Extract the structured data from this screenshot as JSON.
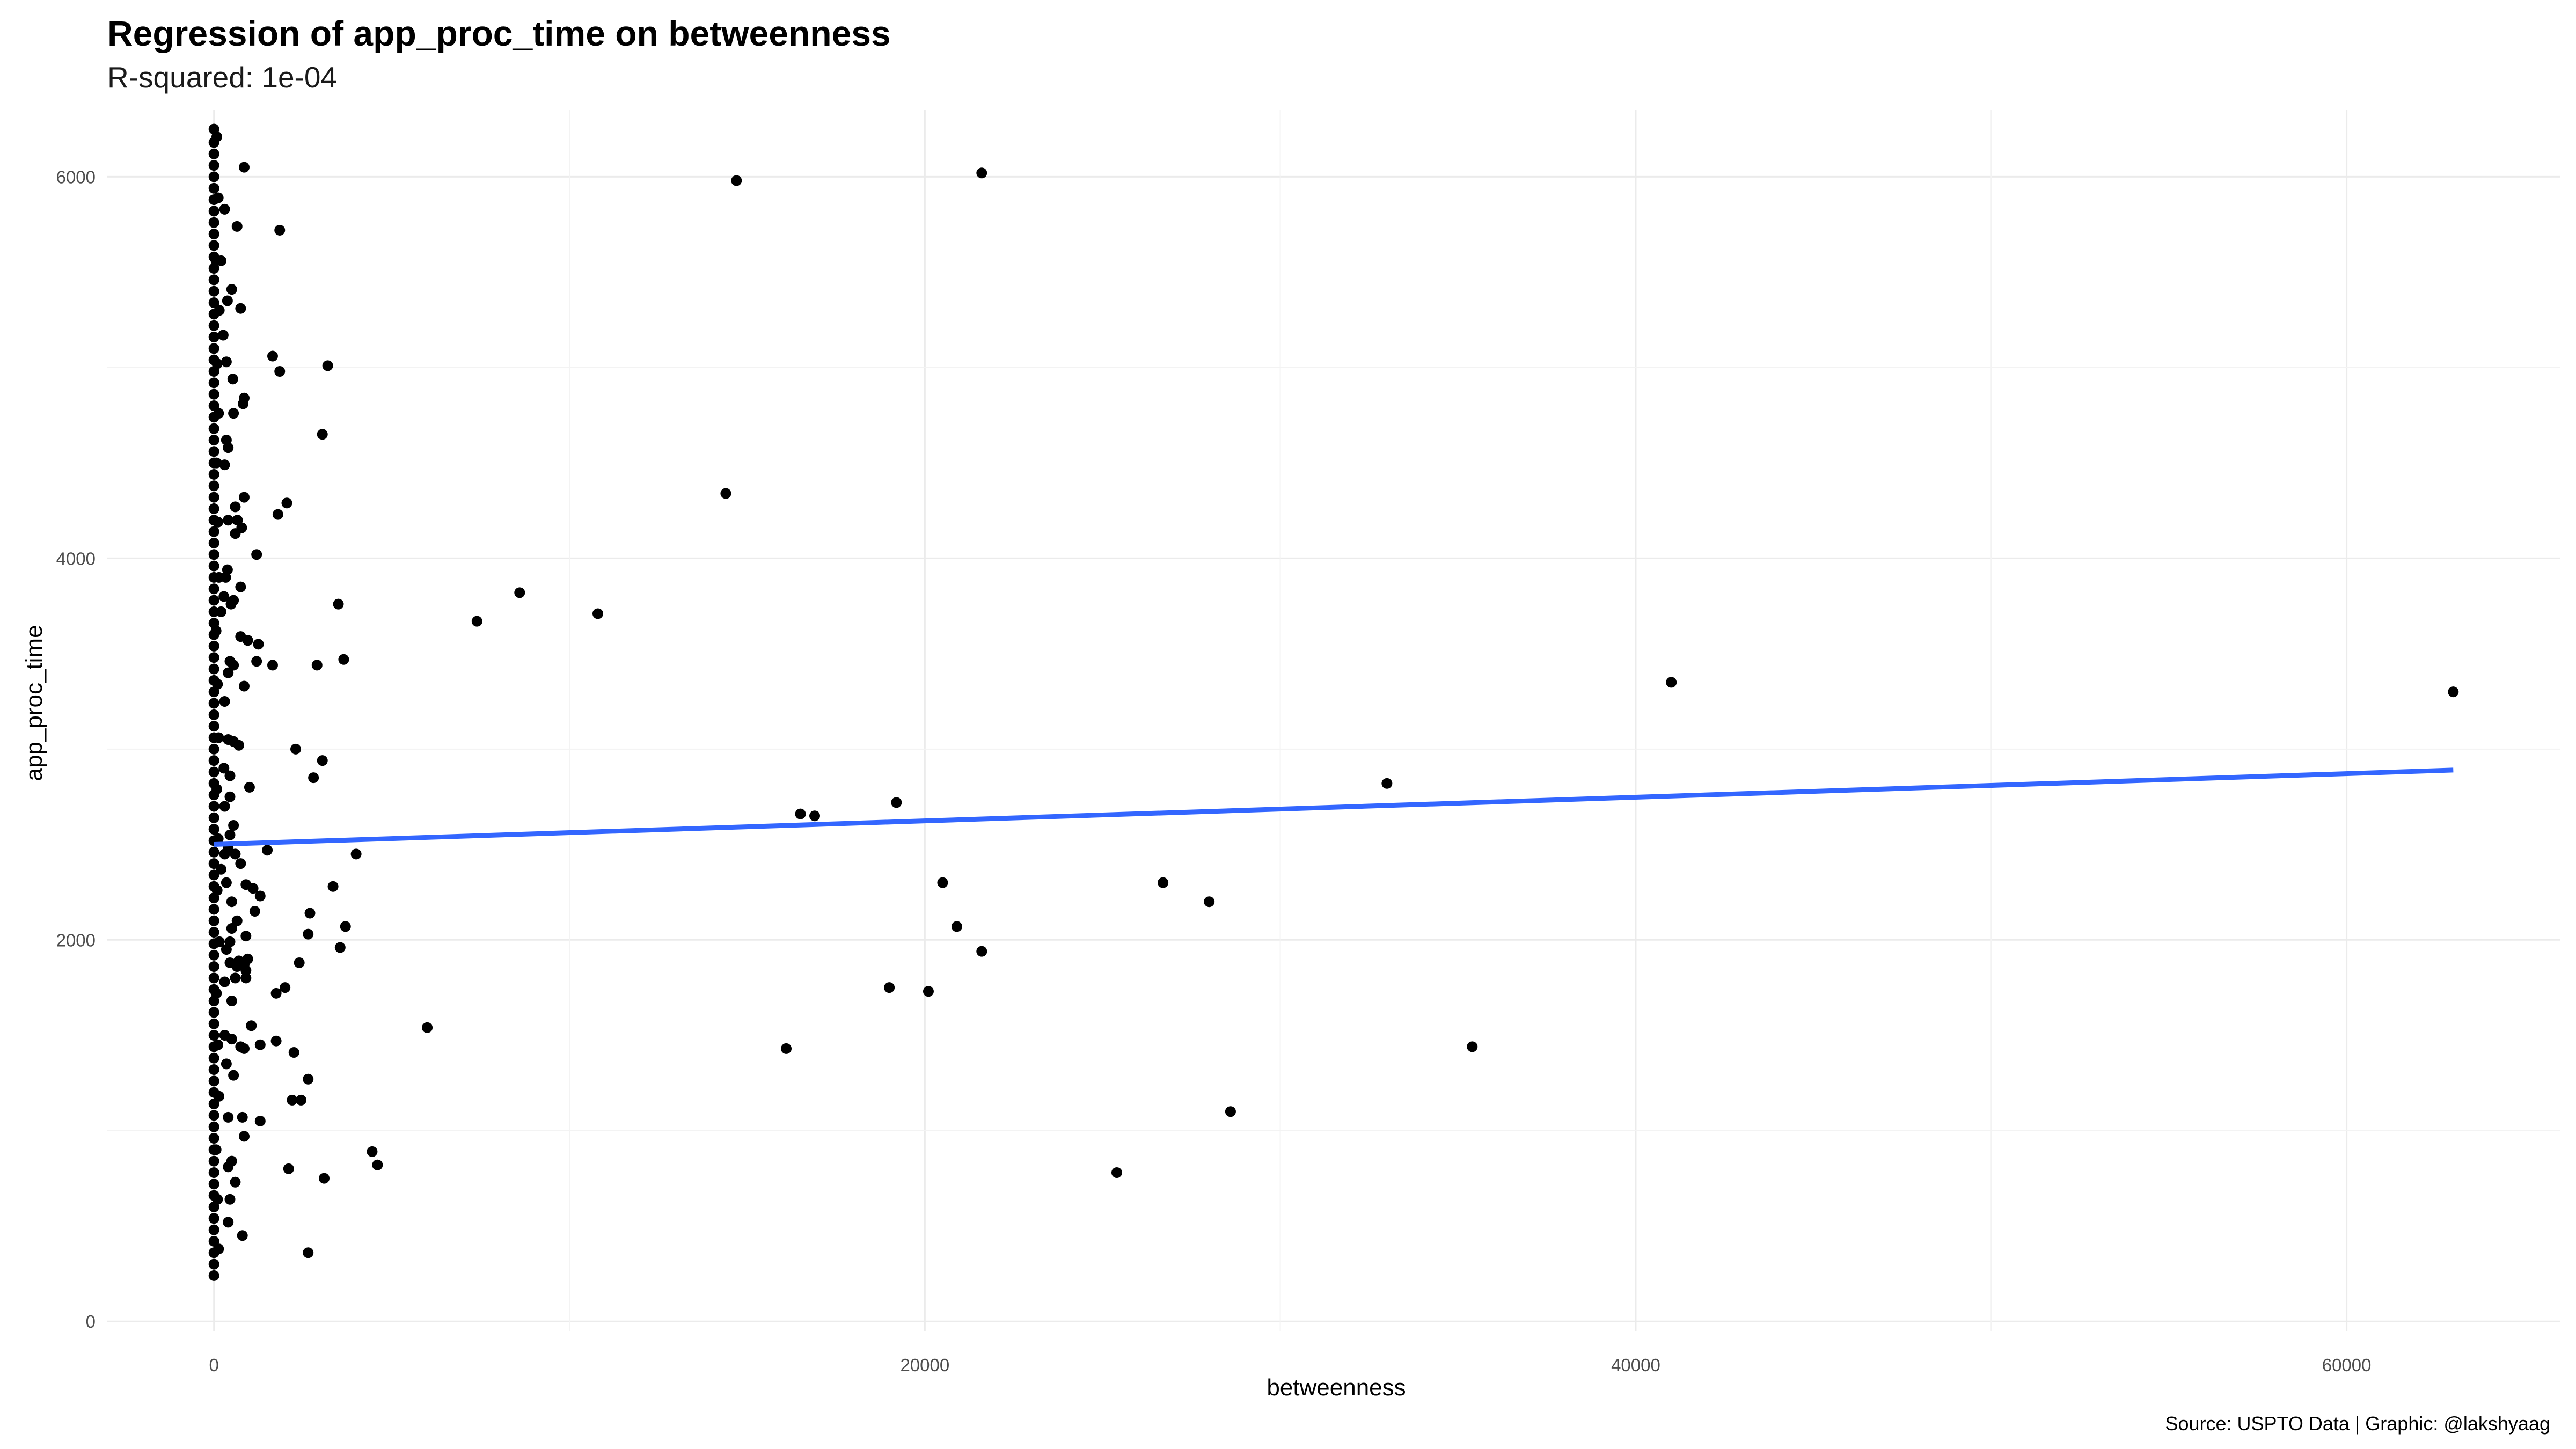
{
  "chart_data": {
    "type": "scatter",
    "title": "Regression of app_proc_time on betweenness",
    "subtitle": "R-squared: 1e-04",
    "caption": "Source: USPTO Data | Graphic: @lakshyaag",
    "xlabel": "betweenness",
    "ylabel": "app_proc_time",
    "xlim": [
      -3000,
      66000
    ],
    "ylim": [
      -50,
      6350
    ],
    "x_ticks": [
      0,
      20000,
      40000,
      60000
    ],
    "y_ticks": [
      0,
      2000,
      4000,
      6000
    ],
    "grid": true,
    "point_color": "#000000",
    "regression": {
      "x": [
        0,
        63000
      ],
      "y": [
        2500,
        2890
      ],
      "color": "#3366FF"
    },
    "points": [
      [
        0,
        6250
      ],
      [
        0,
        6180
      ],
      [
        0,
        6120
      ],
      [
        0,
        6060
      ],
      [
        0,
        6000
      ],
      [
        0,
        5940
      ],
      [
        0,
        5880
      ],
      [
        0,
        5820
      ],
      [
        0,
        5760
      ],
      [
        0,
        5700
      ],
      [
        0,
        5640
      ],
      [
        0,
        5580
      ],
      [
        0,
        5520
      ],
      [
        0,
        5460
      ],
      [
        0,
        5400
      ],
      [
        0,
        5340
      ],
      [
        0,
        5280
      ],
      [
        0,
        5220
      ],
      [
        0,
        5160
      ],
      [
        0,
        5100
      ],
      [
        0,
        5040
      ],
      [
        0,
        4980
      ],
      [
        0,
        4920
      ],
      [
        0,
        4860
      ],
      [
        0,
        4800
      ],
      [
        0,
        4740
      ],
      [
        0,
        4680
      ],
      [
        0,
        4620
      ],
      [
        0,
        4560
      ],
      [
        0,
        4500
      ],
      [
        0,
        4440
      ],
      [
        0,
        4380
      ],
      [
        0,
        4320
      ],
      [
        0,
        4260
      ],
      [
        0,
        4200
      ],
      [
        0,
        4140
      ],
      [
        0,
        4080
      ],
      [
        0,
        4020
      ],
      [
        0,
        3960
      ],
      [
        0,
        3900
      ],
      [
        0,
        3840
      ],
      [
        0,
        3780
      ],
      [
        0,
        3720
      ],
      [
        0,
        3660
      ],
      [
        0,
        3600
      ],
      [
        0,
        3540
      ],
      [
        0,
        3480
      ],
      [
        0,
        3420
      ],
      [
        0,
        3360
      ],
      [
        0,
        3300
      ],
      [
        0,
        3240
      ],
      [
        0,
        3180
      ],
      [
        0,
        3120
      ],
      [
        0,
        3060
      ],
      [
        0,
        3000
      ],
      [
        0,
        2940
      ],
      [
        0,
        2880
      ],
      [
        0,
        2820
      ],
      [
        0,
        2760
      ],
      [
        0,
        2700
      ],
      [
        0,
        2640
      ],
      [
        0,
        2580
      ],
      [
        0,
        2520
      ],
      [
        0,
        2460
      ],
      [
        0,
        2400
      ],
      [
        0,
        2340
      ],
      [
        0,
        2280
      ],
      [
        0,
        2220
      ],
      [
        0,
        2160
      ],
      [
        0,
        2100
      ],
      [
        0,
        2040
      ],
      [
        0,
        1980
      ],
      [
        0,
        1920
      ],
      [
        0,
        1860
      ],
      [
        0,
        1800
      ],
      [
        0,
        1740
      ],
      [
        0,
        1680
      ],
      [
        0,
        1620
      ],
      [
        0,
        1560
      ],
      [
        0,
        1500
      ],
      [
        0,
        1440
      ],
      [
        0,
        1380
      ],
      [
        0,
        1320
      ],
      [
        0,
        1260
      ],
      [
        0,
        1200
      ],
      [
        0,
        1140
      ],
      [
        0,
        1080
      ],
      [
        0,
        1020
      ],
      [
        0,
        960
      ],
      [
        0,
        900
      ],
      [
        0,
        840
      ],
      [
        0,
        780
      ],
      [
        0,
        720
      ],
      [
        0,
        660
      ],
      [
        0,
        600
      ],
      [
        0,
        540
      ],
      [
        0,
        480
      ],
      [
        0,
        420
      ],
      [
        0,
        360
      ],
      [
        0,
        300
      ],
      [
        0,
        240
      ],
      [
        80,
        6210
      ],
      [
        120,
        5890
      ],
      [
        60,
        5560
      ],
      [
        150,
        5300
      ],
      [
        90,
        5020
      ],
      [
        130,
        4760
      ],
      [
        70,
        4500
      ],
      [
        110,
        4190
      ],
      [
        140,
        3900
      ],
      [
        60,
        3620
      ],
      [
        100,
        3340
      ],
      [
        130,
        3060
      ],
      [
        80,
        2790
      ],
      [
        120,
        2530
      ],
      [
        90,
        2260
      ],
      [
        150,
        1990
      ],
      [
        70,
        1720
      ],
      [
        110,
        1450
      ],
      [
        140,
        1180
      ],
      [
        60,
        900
      ],
      [
        100,
        640
      ],
      [
        130,
        380
      ],
      [
        850,
        6050
      ],
      [
        300,
        5830
      ],
      [
        650,
        5740
      ],
      [
        1850,
        5720
      ],
      [
        200,
        5560
      ],
      [
        500,
        5410
      ],
      [
        380,
        5350
      ],
      [
        750,
        5310
      ],
      [
        260,
        5170
      ],
      [
        1650,
        5060
      ],
      [
        350,
        5030
      ],
      [
        1850,
        4980
      ],
      [
        3200,
        5010
      ],
      [
        530,
        4940
      ],
      [
        850,
        4840
      ],
      [
        820,
        4810
      ],
      [
        550,
        4760
      ],
      [
        2050,
        4290
      ],
      [
        350,
        4620
      ],
      [
        3050,
        4650
      ],
      [
        400,
        4580
      ],
      [
        300,
        4490
      ],
      [
        850,
        4320
      ],
      [
        600,
        4270
      ],
      [
        1800,
        4230
      ],
      [
        400,
        4200
      ],
      [
        660,
        4200
      ],
      [
        780,
        4160
      ],
      [
        600,
        4130
      ],
      [
        1200,
        4020
      ],
      [
        380,
        3940
      ],
      [
        330,
        3900
      ],
      [
        750,
        3850
      ],
      [
        550,
        3780
      ],
      [
        280,
        3800
      ],
      [
        3500,
        3760
      ],
      [
        480,
        3760
      ],
      [
        200,
        3720
      ],
      [
        750,
        3590
      ],
      [
        950,
        3570
      ],
      [
        1250,
        3550
      ],
      [
        450,
        3460
      ],
      [
        1200,
        3460
      ],
      [
        1650,
        3440
      ],
      [
        2900,
        3440
      ],
      [
        3650,
        3470
      ],
      [
        550,
        3440
      ],
      [
        400,
        3400
      ],
      [
        850,
        3330
      ],
      [
        300,
        3250
      ],
      [
        400,
        3050
      ],
      [
        550,
        3040
      ],
      [
        700,
        3020
      ],
      [
        2300,
        3000
      ],
      [
        3050,
        2940
      ],
      [
        280,
        2900
      ],
      [
        450,
        2860
      ],
      [
        2800,
        2850
      ],
      [
        1000,
        2800
      ],
      [
        450,
        2750
      ],
      [
        300,
        2700
      ],
      [
        550,
        2600
      ],
      [
        450,
        2550
      ],
      [
        400,
        2480
      ],
      [
        1500,
        2470
      ],
      [
        4000,
        2450
      ],
      [
        600,
        2450
      ],
      [
        300,
        2450
      ],
      [
        750,
        2400
      ],
      [
        200,
        2370
      ],
      [
        350,
        2300
      ],
      [
        900,
        2290
      ],
      [
        3350,
        2280
      ],
      [
        1100,
        2270
      ],
      [
        1300,
        2230
      ],
      [
        500,
        2200
      ],
      [
        1150,
        2150
      ],
      [
        2700,
        2140
      ],
      [
        650,
        2100
      ],
      [
        3700,
        2070
      ],
      [
        500,
        2060
      ],
      [
        2650,
        2030
      ],
      [
        900,
        2020
      ],
      [
        450,
        1990
      ],
      [
        3550,
        1960
      ],
      [
        350,
        1950
      ],
      [
        2400,
        1880
      ],
      [
        950,
        1900
      ],
      [
        700,
        1890
      ],
      [
        450,
        1880
      ],
      [
        850,
        1870
      ],
      [
        650,
        1860
      ],
      [
        900,
        1840
      ],
      [
        600,
        1800
      ],
      [
        900,
        1800
      ],
      [
        300,
        1780
      ],
      [
        2000,
        1750
      ],
      [
        1750,
        1720
      ],
      [
        500,
        1680
      ],
      [
        1050,
        1550
      ],
      [
        300,
        1500
      ],
      [
        500,
        1480
      ],
      [
        1750,
        1470
      ],
      [
        1300,
        1450
      ],
      [
        750,
        1440
      ],
      [
        850,
        1430
      ],
      [
        2250,
        1410
      ],
      [
        350,
        1350
      ],
      [
        2650,
        1270
      ],
      [
        550,
        1290
      ],
      [
        2200,
        1160
      ],
      [
        2450,
        1160
      ],
      [
        400,
        1070
      ],
      [
        800,
        1070
      ],
      [
        1300,
        1050
      ],
      [
        4450,
        890
      ],
      [
        4600,
        820
      ],
      [
        850,
        970
      ],
      [
        500,
        840
      ],
      [
        400,
        810
      ],
      [
        2100,
        800
      ],
      [
        3100,
        750
      ],
      [
        600,
        730
      ],
      [
        450,
        640
      ],
      [
        400,
        520
      ],
      [
        800,
        450
      ],
      [
        2650,
        360
      ]
    ],
    "outliers": [
      [
        14700,
        5980
      ],
      [
        21600,
        6020
      ],
      [
        14400,
        4340
      ],
      [
        7400,
        3670
      ],
      [
        8600,
        3820
      ],
      [
        10800,
        3710
      ],
      [
        6000,
        1540
      ],
      [
        16500,
        2660
      ],
      [
        16900,
        2650
      ],
      [
        19200,
        2720
      ],
      [
        20500,
        2300
      ],
      [
        20900,
        2070
      ],
      [
        21600,
        1940
      ],
      [
        19000,
        1750
      ],
      [
        20100,
        1730
      ],
      [
        16100,
        1430
      ],
      [
        25400,
        780
      ],
      [
        26700,
        2300
      ],
      [
        28000,
        2200
      ],
      [
        28600,
        1100
      ],
      [
        33000,
        2820
      ],
      [
        35400,
        1440
      ],
      [
        41000,
        3350
      ],
      [
        63000,
        3300
      ]
    ]
  }
}
